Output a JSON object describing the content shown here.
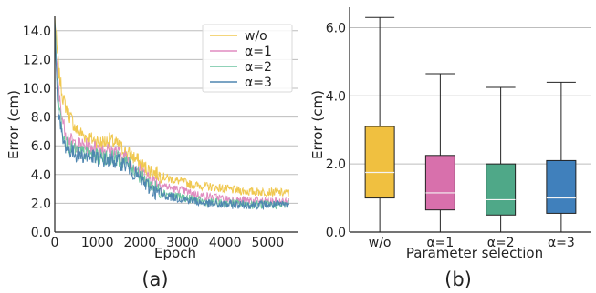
{
  "chart_data": [
    {
      "type": "line",
      "panel_label": "(a)",
      "xlabel": "Epoch",
      "ylabel": "Error (cm)",
      "xlim": [
        0,
        5700
      ],
      "ylim": [
        0,
        15
      ],
      "x_ticks": [
        0,
        1000,
        2000,
        3000,
        4000,
        5000
      ],
      "x_tick_labels": [
        "0",
        "1000",
        "2000",
        "3000",
        "4000",
        "5000"
      ],
      "y_ticks": [
        0,
        2,
        4,
        6,
        8,
        10,
        12,
        14
      ],
      "y_tick_labels": [
        "0.0",
        "2.0",
        "4.0",
        "6.0",
        "8.0",
        "10.0",
        "12.0",
        "14.0"
      ],
      "grid": "horizontal",
      "legend_position": "top-right",
      "series": [
        {
          "name": "w/o",
          "color": "#f0c850",
          "x": [
            0,
            50,
            100,
            200,
            300,
            400,
            500,
            700,
            900,
            1100,
            1300,
            1500,
            1700,
            1900,
            2100,
            2300,
            2500,
            2800,
            3000,
            3200,
            3500,
            3800,
            4000,
            4300,
            4600,
            5000,
            5500
          ],
          "y": [
            15,
            12.8,
            11.0,
            9.2,
            8.4,
            7.8,
            7.1,
            6.7,
            6.4,
            6.2,
            6.4,
            6.0,
            5.5,
            5.1,
            4.5,
            4.2,
            3.9,
            3.6,
            3.5,
            3.3,
            3.2,
            3.1,
            3.0,
            2.9,
            2.8,
            2.8,
            2.7
          ]
        },
        {
          "name": "α=1",
          "color": "#e08cc0",
          "x": [
            0,
            50,
            100,
            200,
            300,
            400,
            500,
            700,
            900,
            1100,
            1300,
            1500,
            1700,
            1900,
            2100,
            2300,
            2500,
            2800,
            3000,
            3200,
            3500,
            3800,
            4000,
            4300,
            4600,
            5000,
            5500
          ],
          "y": [
            14.5,
            11.5,
            9.5,
            7.5,
            6.6,
            6.3,
            6.1,
            6.0,
            5.9,
            5.8,
            5.7,
            5.5,
            5.1,
            4.6,
            4.0,
            3.6,
            3.3,
            3.0,
            2.9,
            2.7,
            2.5,
            2.4,
            2.3,
            2.2,
            2.2,
            2.1,
            2.1
          ]
        },
        {
          "name": "α=2",
          "color": "#6cc4a0",
          "x": [
            0,
            50,
            100,
            200,
            300,
            400,
            500,
            700,
            900,
            1100,
            1300,
            1500,
            1700,
            1900,
            2100,
            2300,
            2500,
            2800,
            3000,
            3200,
            3500,
            3800,
            4000,
            4300,
            4600,
            5000,
            5500
          ],
          "y": [
            14.8,
            11.0,
            8.8,
            6.8,
            6.1,
            5.8,
            5.6,
            5.5,
            5.3,
            5.2,
            5.2,
            5.1,
            4.8,
            4.3,
            3.6,
            3.2,
            2.8,
            2.5,
            2.4,
            2.3,
            2.1,
            2.0,
            2.0,
            2.0,
            1.9,
            1.9,
            1.9
          ]
        },
        {
          "name": "α=3",
          "color": "#4f86b0",
          "x": [
            0,
            50,
            100,
            200,
            300,
            400,
            500,
            700,
            900,
            1100,
            1300,
            1500,
            1700,
            1900,
            2100,
            2300,
            2500,
            2800,
            3000,
            3200,
            3500,
            3800,
            4000,
            4300,
            4600,
            5000,
            5500
          ],
          "y": [
            15,
            10.0,
            8.0,
            6.2,
            5.8,
            5.6,
            5.4,
            5.3,
            5.2,
            5.0,
            5.0,
            4.9,
            4.6,
            4.0,
            3.4,
            2.9,
            2.6,
            2.4,
            2.3,
            2.2,
            2.0,
            1.9,
            1.9,
            1.9,
            1.9,
            1.9,
            1.9
          ]
        }
      ]
    },
    {
      "type": "box",
      "panel_label": "(b)",
      "xlabel": "Parameter selection",
      "ylabel": "Error (cm)",
      "ylim": [
        0,
        6.6
      ],
      "y_ticks": [
        0,
        2,
        4,
        6
      ],
      "y_tick_labels": [
        "0.0",
        "2.0",
        "4.0",
        "6.0"
      ],
      "grid": "horizontal",
      "categories": [
        "w/o",
        "α=1",
        "α=2",
        "α=3"
      ],
      "boxes": [
        {
          "name": "w/o",
          "color": "#f0c040",
          "min": 0.0,
          "q1": 1.0,
          "median": 1.75,
          "q3": 3.1,
          "max": 6.3
        },
        {
          "name": "α=1",
          "color": "#d870ac",
          "min": 0.0,
          "q1": 0.65,
          "median": 1.15,
          "q3": 2.25,
          "max": 4.65
        },
        {
          "name": "α=2",
          "color": "#4fa888",
          "min": 0.0,
          "q1": 0.5,
          "median": 0.95,
          "q3": 2.0,
          "max": 4.25
        },
        {
          "name": "α=3",
          "color": "#4080bc",
          "min": 0.0,
          "q1": 0.55,
          "median": 1.0,
          "q3": 2.1,
          "max": 4.4
        }
      ]
    }
  ]
}
